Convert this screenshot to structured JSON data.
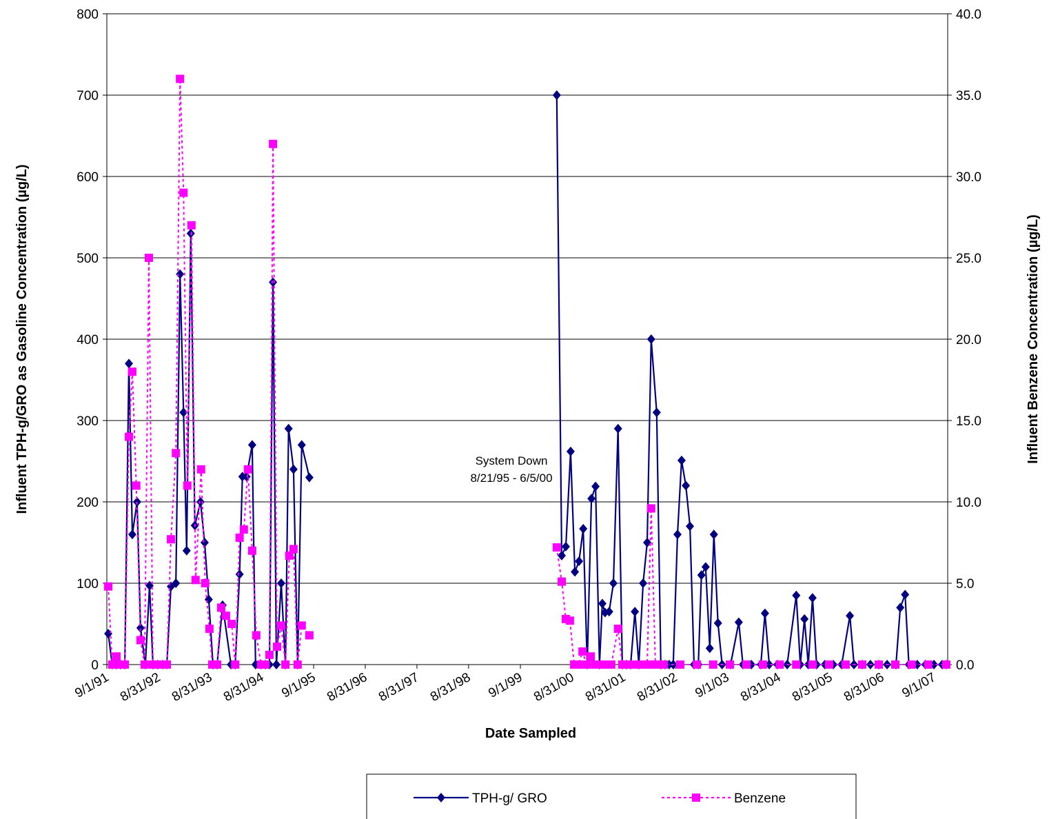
{
  "chart_data": {
    "type": "line",
    "x_label": "Date Sampled",
    "y_label": "Influent TPH-g/GRO as Gasoline Concentration (µg/L)",
    "y2_label": "Influent Benzene Concentration (µg/L)",
    "annotation": [
      "System Down",
      "8/21/95 - 6/5/00"
    ],
    "xlim": [
      "1991-09-01",
      "2007-12-07"
    ],
    "xticks": [
      {
        "value": "1991-09-01",
        "label": "9/1/91"
      },
      {
        "value": "1992-08-31",
        "label": "8/31/92"
      },
      {
        "value": "1993-08-31",
        "label": "8/31/93"
      },
      {
        "value": "1994-08-31",
        "label": "8/31/94"
      },
      {
        "value": "1995-09-01",
        "label": "9/1/95"
      },
      {
        "value": "1996-08-31",
        "label": "8/31/96"
      },
      {
        "value": "1997-08-31",
        "label": "8/31/97"
      },
      {
        "value": "1998-08-31",
        "label": "8/31/98"
      },
      {
        "value": "1999-09-01",
        "label": "9/1/99"
      },
      {
        "value": "2000-08-31",
        "label": "8/31/00"
      },
      {
        "value": "2001-08-31",
        "label": "8/31/01"
      },
      {
        "value": "2002-08-31",
        "label": "8/31/02"
      },
      {
        "value": "2003-09-01",
        "label": "9/1/03"
      },
      {
        "value": "2004-08-31",
        "label": "8/31/04"
      },
      {
        "value": "2005-08-31",
        "label": "8/31/05"
      },
      {
        "value": "2006-08-31",
        "label": "8/31/06"
      },
      {
        "value": "2007-09-01",
        "label": "9/1/07"
      }
    ],
    "ylim": [
      0,
      800
    ],
    "yticks": [
      0,
      100,
      200,
      300,
      400,
      500,
      600,
      700,
      800
    ],
    "y2lim": [
      0,
      40
    ],
    "y2ticks": [
      {
        "value": 0,
        "label": "0.0"
      },
      {
        "value": 5,
        "label": "5.0"
      },
      {
        "value": 10,
        "label": "10.0"
      },
      {
        "value": 15,
        "label": "15.0"
      },
      {
        "value": 20,
        "label": "20.0"
      },
      {
        "value": 25,
        "label": "25.0"
      },
      {
        "value": 30,
        "label": "30.0"
      },
      {
        "value": 35,
        "label": "35.0"
      },
      {
        "value": 40,
        "label": "40.0"
      }
    ],
    "grid": true,
    "legend": "bottom",
    "series": [
      {
        "name": "TPH-g/ GRO",
        "color": "#000080",
        "marker": "diamond",
        "linestyle": "solid",
        "axis": "y",
        "x": [
          "1991-09-11",
          "1991-10-09",
          "1991-11-08",
          "1991-12-07",
          "1992-01-06",
          "1992-02-04",
          "1992-02-28",
          "1992-04-02",
          "1992-04-26",
          "1992-05-30",
          "1992-06-29",
          "1992-07-23",
          "1992-08-26",
          "1992-09-30",
          "1992-10-29",
          "1992-11-27",
          "1993-01-01",
          "1993-01-30",
          "1993-02-24",
          "1993-03-18",
          "1993-04-16",
          "1993-05-15",
          "1993-06-24",
          "1993-07-23",
          "1993-08-21",
          "1993-09-20",
          "1993-10-19",
          "1993-11-27",
          "1994-01-25",
          "1994-02-24",
          "1994-03-27",
          "1994-04-16",
          "1994-05-15",
          "1994-06-24",
          "1994-07-18",
          "1994-08-26",
          "1994-09-25",
          "1994-10-24",
          "1994-11-18",
          "1994-12-12",
          "1995-01-15",
          "1995-02-14",
          "1995-03-08",
          "1995-04-12",
          "1995-05-11",
          "1995-06-09",
          "1995-08-02",
          null,
          "2000-05-15",
          "2000-06-19",
          "2000-07-18",
          "2000-08-21",
          "2000-09-20",
          "2000-10-19",
          "2000-11-18",
          "2000-12-16",
          "2001-01-15",
          "2001-02-13",
          "2001-03-13",
          "2001-04-02",
          "2001-04-21",
          "2001-05-20",
          "2001-06-19",
          "2001-07-22",
          "2001-08-21",
          "2001-09-20",
          "2001-10-19",
          "2001-11-18",
          "2001-12-16",
          "2002-01-15",
          "2002-02-13",
          "2002-03-13",
          "2002-04-21",
          "2002-05-20",
          "2002-06-19",
          "2002-07-18",
          "2002-08-16",
          "2002-09-15",
          "2002-10-14",
          "2002-11-13",
          "2002-12-12",
          "2003-01-10",
          "2003-02-09",
          "2003-03-03",
          "2003-04-02",
          "2003-05-01",
          "2003-05-30",
          "2003-06-28",
          "2003-07-27",
          "2003-09-25",
          "2003-11-22",
          "2003-12-21",
          "2004-02-19",
          "2004-04-26",
          "2004-05-25",
          "2004-06-24",
          "2004-08-21",
          "2004-10-29",
          "2005-01-01",
          "2005-01-30",
          "2005-02-28",
          "2005-03-27",
          "2005-04-26",
          "2005-05-25",
          "2005-07-22",
          "2005-09-20",
          "2005-11-18",
          "2006-01-15",
          "2006-02-13",
          "2006-04-12",
          "2006-06-09",
          "2006-08-07",
          "2006-10-05",
          "2006-12-07",
          "2007-01-06",
          "2007-02-09",
          "2007-03-08",
          "2007-05-06",
          "2007-07-03",
          "2007-09-01",
          "2007-10-29",
          "2007-11-27"
        ],
        "values": [
          38,
          0,
          0,
          0,
          0,
          370,
          160,
          200,
          45,
          0,
          97,
          0,
          0,
          0,
          0,
          96,
          100,
          480,
          310,
          140,
          530,
          171,
          200,
          150,
          80,
          0,
          0,
          73,
          0,
          0,
          111,
          231,
          231,
          270,
          0,
          0,
          0,
          0,
          470,
          0,
          100,
          0,
          290,
          240,
          0,
          270,
          230,
          null,
          700,
          134,
          145,
          262,
          114,
          127,
          167,
          0,
          204,
          219,
          0,
          75,
          64,
          65,
          100,
          290,
          0,
          0,
          0,
          65,
          0,
          100,
          150,
          400,
          310,
          0,
          0,
          0,
          0,
          160,
          251,
          220,
          170,
          0,
          0,
          110,
          120,
          20,
          160,
          51,
          0,
          0,
          52,
          0,
          0,
          0,
          63,
          0,
          0,
          0,
          85,
          0,
          56,
          0,
          82,
          0,
          0,
          0,
          0,
          60,
          0,
          0,
          0,
          0,
          0,
          0,
          70,
          86,
          0,
          0,
          0,
          0,
          0,
          0
        ]
      },
      {
        "name": "Benzene",
        "color": "#ff00ff",
        "marker": "square",
        "linestyle": "dotted",
        "axis": "y2",
        "x": [
          "1991-09-11",
          "1991-10-09",
          "1991-11-08",
          "1991-12-07",
          "1992-01-06",
          "1992-02-04",
          "1992-02-28",
          "1992-03-27",
          "1992-04-26",
          "1992-05-25",
          "1992-06-24",
          "1992-07-23",
          "1992-08-26",
          "1992-09-30",
          "1992-10-29",
          "1992-11-27",
          "1993-01-01",
          "1993-01-30",
          "1993-02-24",
          "1993-03-23",
          "1993-04-21",
          "1993-05-20",
          "1993-06-28",
          "1993-07-27",
          "1993-08-26",
          "1993-09-15",
          "1993-10-19",
          "1993-11-17",
          "1993-12-21",
          "1994-01-30",
          "1994-02-24",
          "1994-03-27",
          "1994-04-26",
          "1994-05-25",
          "1994-06-24",
          "1994-07-23",
          "1994-08-26",
          "1994-09-25",
          "1994-10-24",
          "1994-11-18",
          "1994-12-17",
          "1995-01-15",
          "1995-02-14",
          "1995-03-13",
          "1995-04-12",
          "1995-05-11",
          "1995-06-09",
          "1995-08-02",
          null,
          "2000-05-15",
          "2000-06-19",
          "2000-07-18",
          "2000-08-16",
          "2000-09-15",
          "2000-10-14",
          "2000-11-13",
          "2000-12-12",
          "2001-01-10",
          "2001-02-09",
          "2001-04-07",
          "2001-06-04",
          "2001-07-22",
          "2001-08-21",
          "2001-10-19",
          "2001-12-16",
          "2002-02-13",
          "2002-03-13",
          "2002-04-12",
          "2002-06-09",
          "2002-10-04",
          "2003-01-30",
          "2003-05-25",
          "2003-09-20",
          "2004-01-15",
          "2004-05-10",
          "2004-09-06",
          "2005-01-01",
          "2005-04-26",
          "2005-08-21",
          "2005-12-16",
          "2006-04-12",
          "2006-08-07",
          "2006-12-02",
          "2007-03-27",
          "2007-07-22",
          "2007-11-27"
        ],
        "values": [
          4.8,
          0,
          0.5,
          0,
          0,
          14,
          18,
          11,
          1.5,
          0,
          25,
          0,
          0,
          0,
          0,
          7.7,
          13,
          36,
          29,
          11,
          27,
          5.2,
          12,
          5,
          2.2,
          0,
          0,
          3.5,
          3,
          2.5,
          0,
          7.8,
          8.3,
          12,
          7,
          1.8,
          0,
          0,
          0.6,
          32,
          1.1,
          2.4,
          0,
          6.7,
          7.1,
          0,
          2.4,
          1.8,
          null,
          7.2,
          5.1,
          2.8,
          2.7,
          0,
          0,
          0.8,
          0,
          0.5,
          0,
          0,
          0,
          2.2,
          0,
          0,
          0,
          0,
          9.6,
          0,
          0,
          0,
          0,
          0,
          0,
          0,
          0,
          0,
          0,
          0,
          0,
          0,
          0,
          0,
          0,
          0,
          0,
          0
        ]
      }
    ]
  }
}
